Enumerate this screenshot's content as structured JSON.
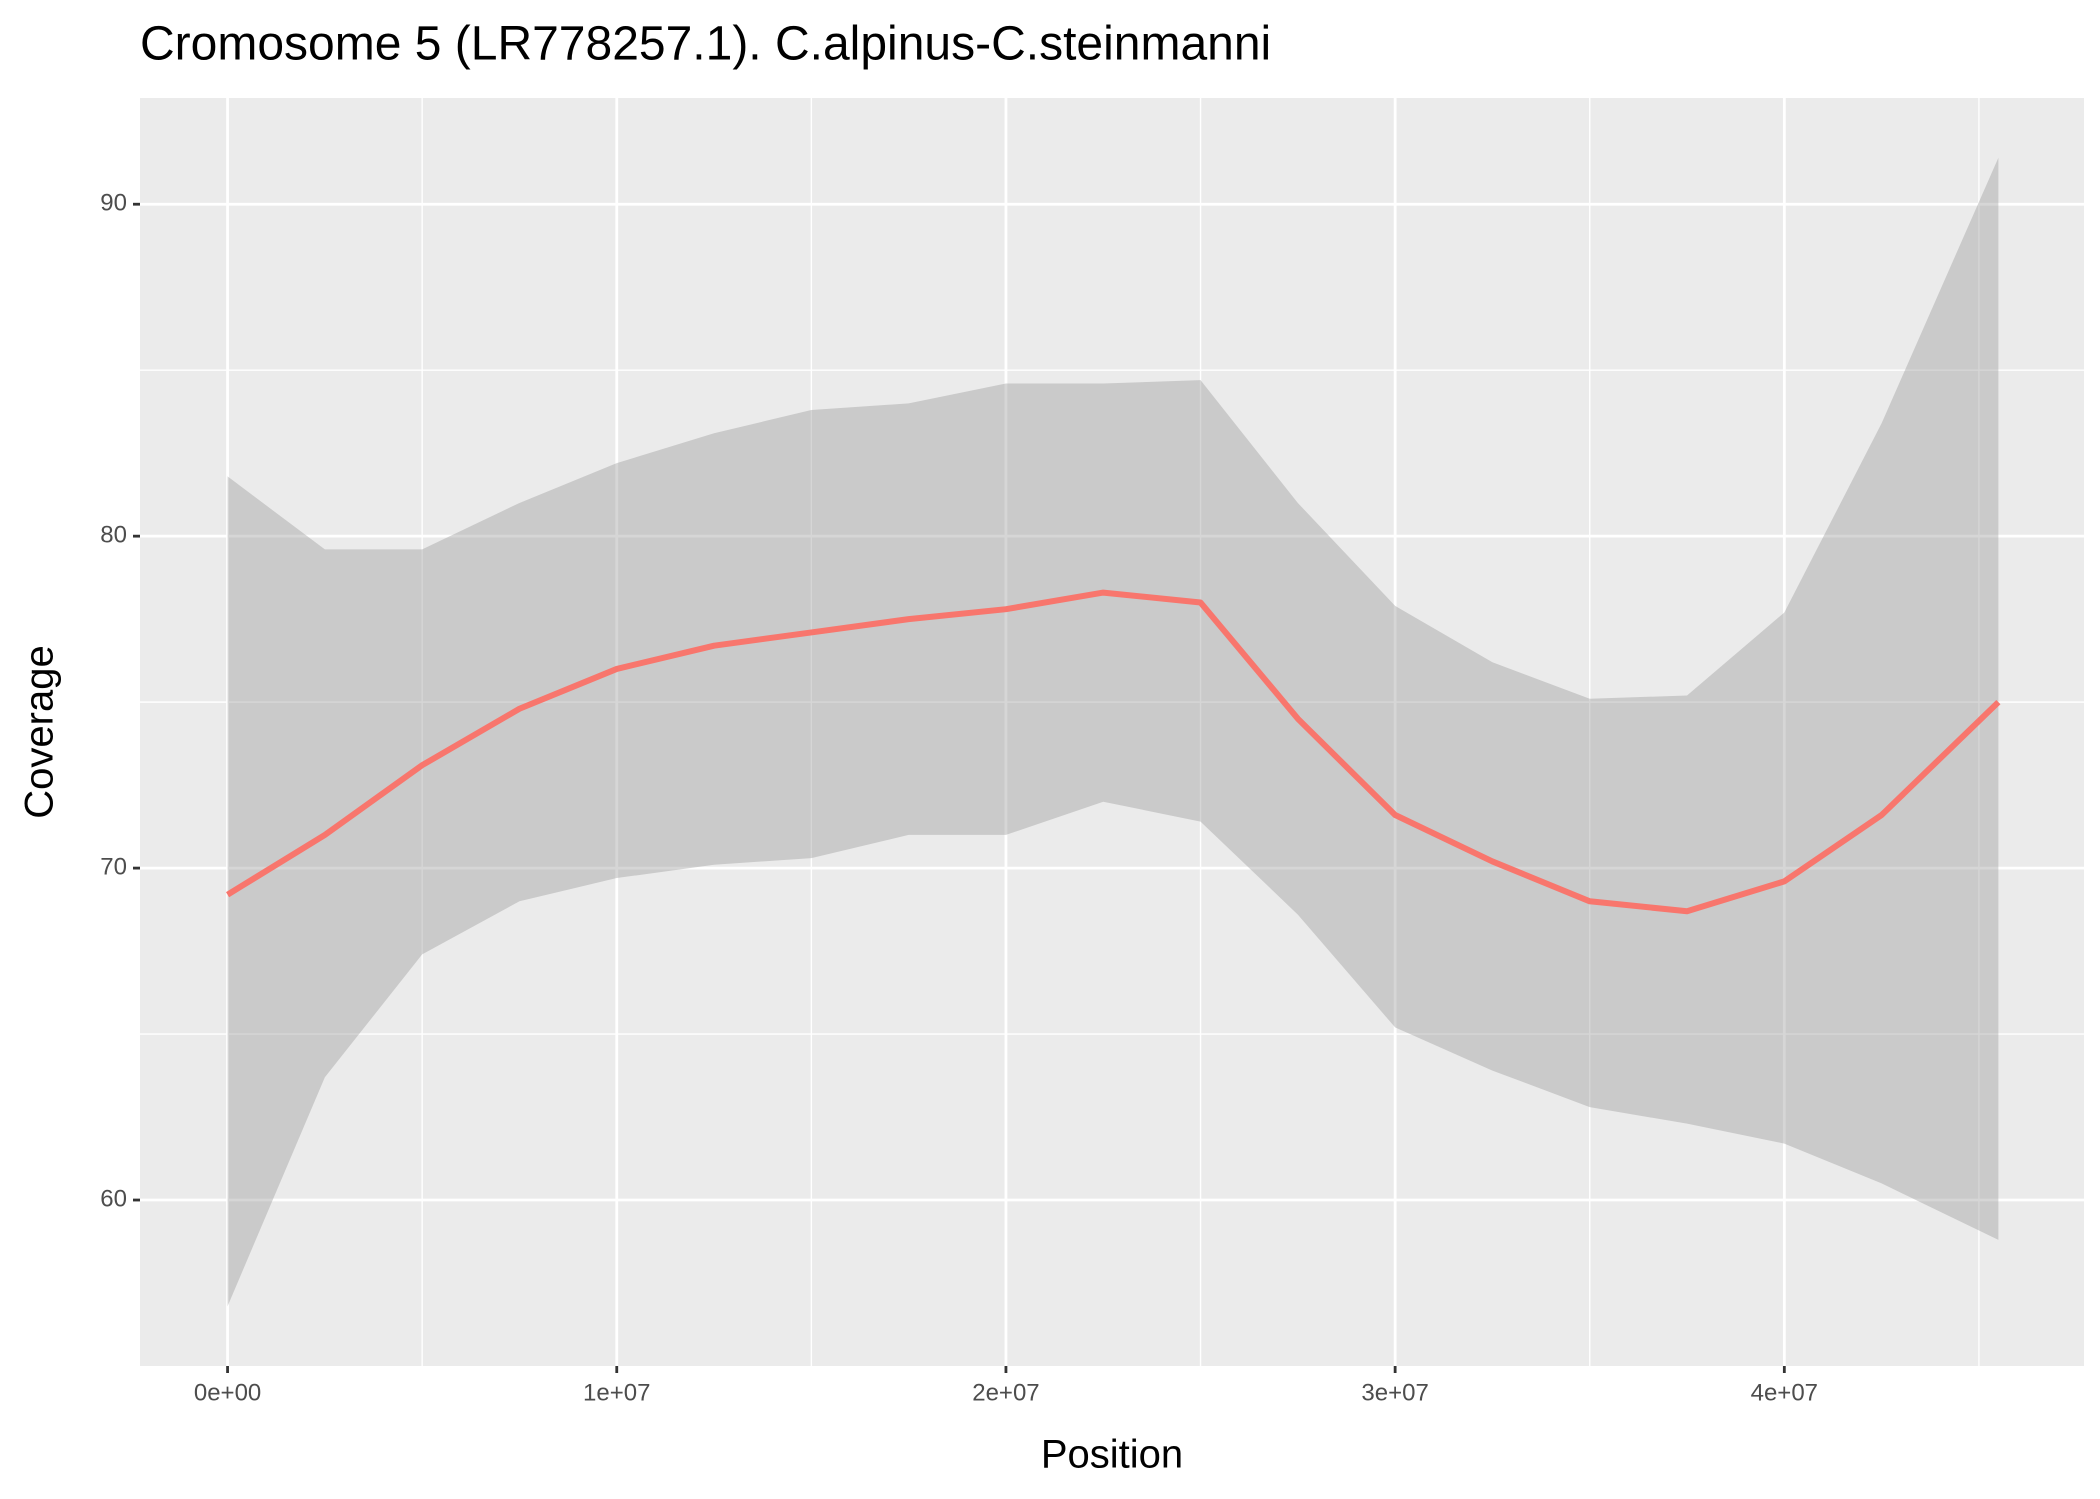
{
  "chart_data": {
    "type": "line",
    "title": "Cromosome 5 (LR778257.1). C.alpinus-C.steinmanni",
    "x_label": "Position",
    "y_label": "Coverage",
    "x": [
      0,
      2500000,
      5000000,
      7500000,
      10000000,
      12500000,
      15000000,
      17500000,
      20000000,
      22500000,
      25000000,
      27500000,
      30000000,
      32500000,
      35000000,
      37500000,
      40000000,
      42500000,
      45500000
    ],
    "series": [
      {
        "color": "#F8766D",
        "values": [
          69.2,
          71.0,
          73.1,
          74.8,
          76.0,
          76.7,
          77.1,
          77.5,
          77.8,
          78.3,
          78.0,
          74.5,
          71.6,
          70.2,
          69.0,
          68.7,
          69.6,
          71.6,
          75.0
        ],
        "lower": [
          56.8,
          63.7,
          67.4,
          69.0,
          69.7,
          70.1,
          70.3,
          71.0,
          71.0,
          72.0,
          71.4,
          68.6,
          65.2,
          63.9,
          62.8,
          62.3,
          61.7,
          60.5,
          58.8
        ],
        "upper": [
          81.8,
          79.6,
          79.6,
          81.0,
          82.2,
          83.1,
          83.8,
          84.0,
          84.6,
          84.6,
          84.7,
          81.0,
          77.9,
          76.2,
          75.1,
          75.2,
          77.7,
          83.4,
          91.4
        ],
        "band_color": "#999999"
      }
    ],
    "xlim": [
      -2250000,
      47700000
    ],
    "ylim": [
      55.0,
      93.2
    ],
    "xticks": [
      {
        "value": 0,
        "label": "0e+00"
      },
      {
        "value": 10000000,
        "label": "1e+07"
      },
      {
        "value": 20000000,
        "label": "2e+07"
      },
      {
        "value": 30000000,
        "label": "3e+07"
      },
      {
        "value": 40000000,
        "label": "4e+07"
      }
    ],
    "yticks": [
      60,
      70,
      80,
      90
    ],
    "minor_xticks": [
      5000000,
      15000000,
      25000000,
      35000000,
      45000000
    ],
    "minor_yticks": [
      65,
      75,
      85
    ],
    "grid": true,
    "panel_color": "#EBEBEB"
  }
}
